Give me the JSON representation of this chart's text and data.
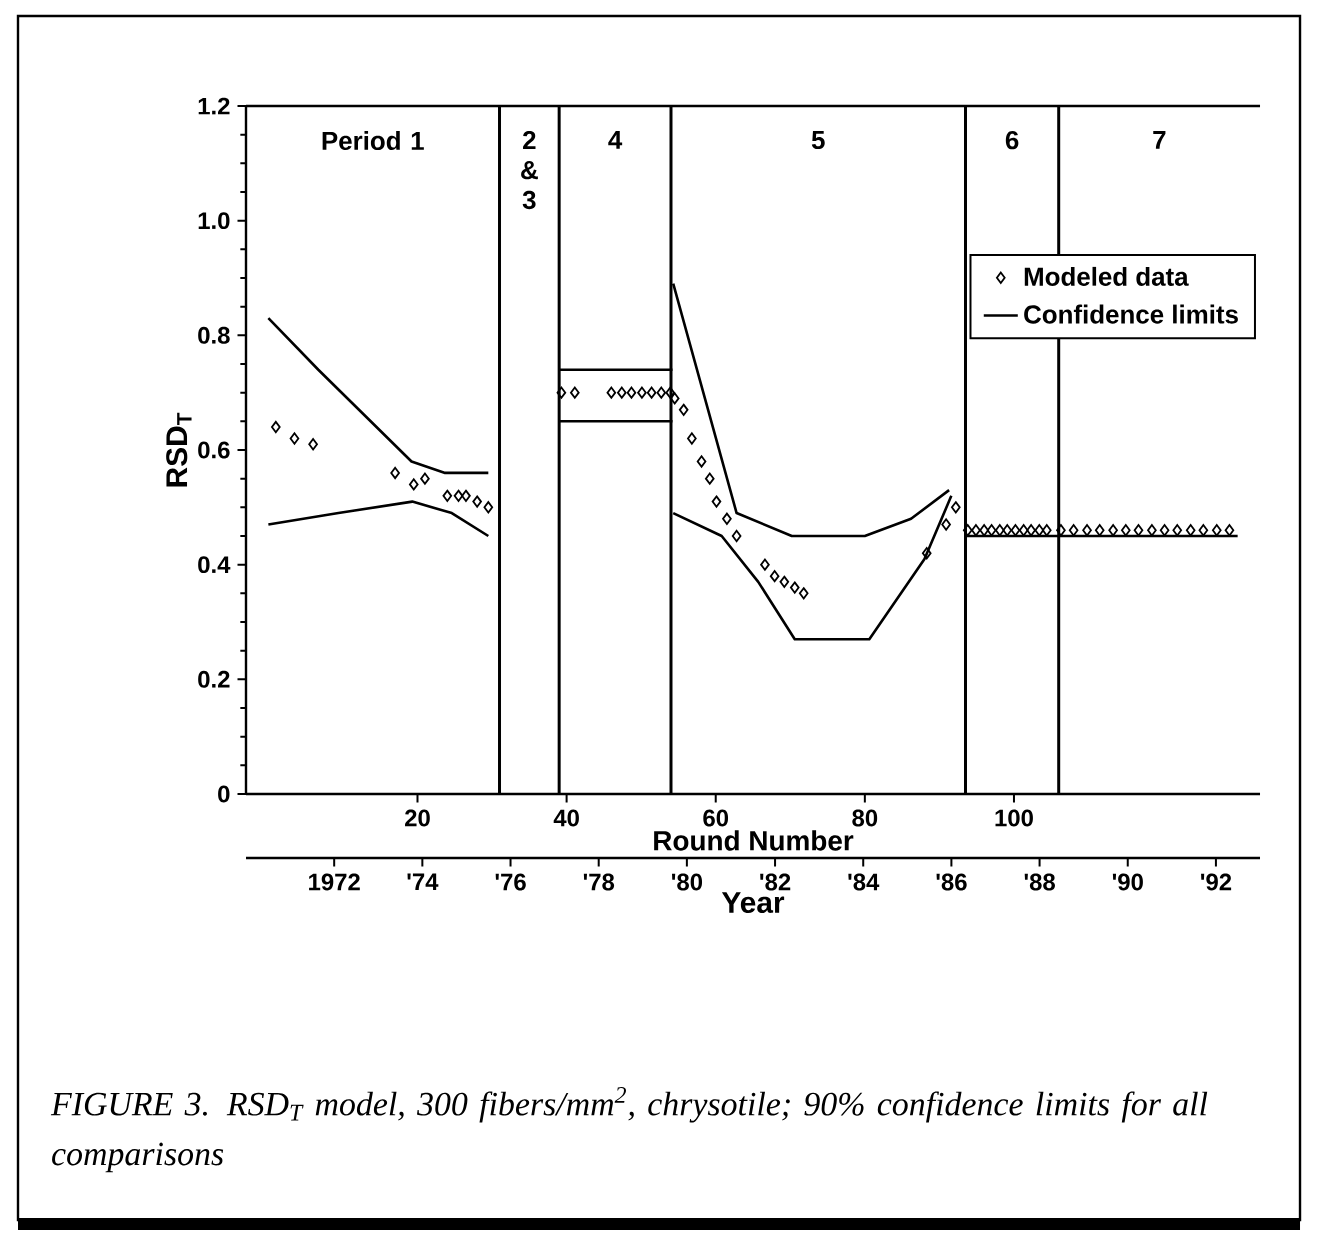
{
  "chart_data": {
    "type": "scatter",
    "xlabel": "Round Number",
    "ylabel": "RSD$_{T}$",
    "x2label": "Year",
    "xlim": [
      -3,
      133
    ],
    "xticks": [
      20,
      40,
      60,
      80,
      100
    ],
    "x2lim": [
      1970,
      1993
    ],
    "x2ticks": [
      1972,
      {
        "value": 1974,
        "label": "'74"
      },
      {
        "value": 1976,
        "label": "'76"
      },
      {
        "value": 1978,
        "label": "'78"
      },
      {
        "value": 1980,
        "label": "'80"
      },
      {
        "value": 1982,
        "label": "'82"
      },
      {
        "value": 1984,
        "label": "'84"
      },
      {
        "value": 1986,
        "label": "'86"
      },
      {
        "value": 1988,
        "label": "'88"
      },
      {
        "value": 1990,
        "label": "'90"
      },
      {
        "value": 1992,
        "label": "'92"
      }
    ],
    "ylim": [
      0,
      1.2
    ],
    "yticks": [
      0,
      0.2,
      0.4,
      0.6,
      0.8,
      {
        "value": 1,
        "label": "1.0"
      },
      1.2
    ],
    "legend": "top right",
    "series": [
      {
        "name": "Modeled data",
        "marker": "diamond",
        "color": "#000000",
        "x": [
          1,
          3.5,
          6,
          17,
          19.5,
          21,
          24,
          25.5,
          26.5,
          28,
          29.5,
          39.3,
          41.1,
          46,
          47.4,
          48.7,
          50.1,
          51.4,
          52.7,
          53.9,
          54.5,
          55.7,
          56.8,
          58.1,
          59.2,
          60.1,
          61.5,
          62.8,
          66.6,
          67.9,
          69.2,
          70.6,
          71.8,
          88.3,
          90.9,
          92.2,
          93.8,
          94.9,
          96,
          97,
          98.1,
          99.1,
          100.2,
          101.3,
          102.3,
          103.4,
          104.4,
          106.3,
          108,
          109.8,
          111.5,
          113.3,
          115,
          116.7,
          118.5,
          120.2,
          121.9,
          123.7,
          125.4,
          127.2,
          128.9
        ],
        "values": [
          0.64,
          0.62,
          0.61,
          0.56,
          0.54,
          0.55,
          0.52,
          0.52,
          0.52,
          0.51,
          0.5,
          0.7,
          0.7,
          0.7,
          0.7,
          0.7,
          0.7,
          0.7,
          0.7,
          0.7,
          0.69,
          0.67,
          0.62,
          0.58,
          0.55,
          0.51,
          0.48,
          0.45,
          0.4,
          0.38,
          0.37,
          0.36,
          0.35,
          0.42,
          0.47,
          0.5,
          0.46,
          0.46,
          0.46,
          0.46,
          0.46,
          0.46,
          0.46,
          0.46,
          0.46,
          0.46,
          0.46,
          0.46,
          0.46,
          0.46,
          0.46,
          0.46,
          0.46,
          0.46,
          0.46,
          0.46,
          0.46,
          0.46,
          0.46,
          0.46,
          0.46
        ]
      },
      {
        "name": "Confidence limits",
        "type": "line",
        "marker": "none",
        "line_style": "solid",
        "color": "#000000",
        "x": [
          0,
          6.7,
          19.2,
          23.7,
          29.5
        ],
        "values": [
          0.83,
          0.74,
          0.58,
          0.56,
          0.56
        ]
      },
      {
        "type": "line",
        "marker": "none",
        "line_style": "solid",
        "color": "#000000",
        "x": [
          0,
          9.4,
          19.3,
          24.6,
          29.5
        ],
        "values": [
          0.47,
          0.49,
          0.51,
          0.49,
          0.45
        ]
      },
      {
        "type": "line",
        "marker": "none",
        "line_style": "solid",
        "color": "#000000",
        "x": [
          39,
          54.2
        ],
        "values": [
          0.74,
          0.74
        ]
      },
      {
        "type": "line",
        "marker": "none",
        "line_style": "solid",
        "color": "#000000",
        "x": [
          39,
          54.2
        ],
        "values": [
          0.65,
          0.65
        ]
      },
      {
        "type": "line",
        "marker": "none",
        "line_style": "solid",
        "color": "#000000",
        "x": [
          54.3,
          62.8,
          70.2,
          80,
          86.2,
          91.3
        ],
        "values": [
          0.89,
          0.49,
          0.45,
          0.45,
          0.48,
          0.53
        ]
      },
      {
        "type": "line",
        "marker": "none",
        "line_style": "solid",
        "color": "#000000",
        "x": [
          54.3,
          60.8,
          65.7,
          70.6,
          80.6,
          88,
          91.6
        ],
        "values": [
          0.49,
          0.45,
          0.37,
          0.27,
          0.27,
          0.41,
          0.52
        ]
      },
      {
        "type": "line",
        "marker": "none",
        "line_style": "solid",
        "color": "#000000",
        "x": [
          93.5,
          130
        ],
        "values": [
          0.45,
          0.45
        ]
      }
    ],
    "ref_lines": [
      {
        "axis": "x",
        "value": 31
      },
      {
        "axis": "x",
        "value": 39
      },
      {
        "axis": "x",
        "value": 54
      },
      {
        "axis": "x",
        "value": 93.5
      },
      {
        "axis": "x",
        "value": 106
      }
    ],
    "annotations": [
      "Period 1",
      "2 & 3",
      "4",
      "5",
      "6",
      "7",
      "FIGURE 3. RSD$_{T}$ model, 300 fibers/mm$^{2}$, chrysotile; 90% confidence limits for all comparisons"
    ]
  }
}
